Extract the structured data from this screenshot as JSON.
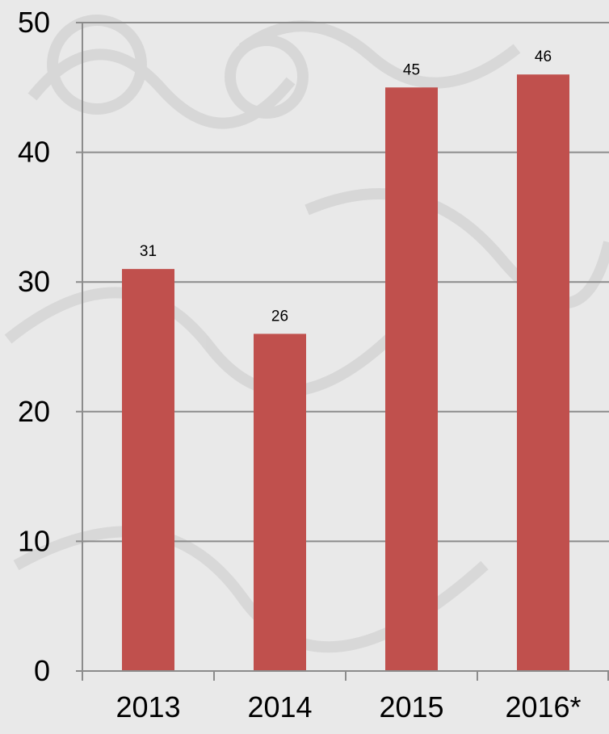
{
  "chart_data": {
    "type": "bar",
    "categories": [
      "2013",
      "2014",
      "2015",
      "2016*"
    ],
    "values": [
      31,
      26,
      45,
      46
    ],
    "data_labels": [
      "31",
      "26",
      "45",
      "46"
    ],
    "ylim": [
      0,
      50
    ],
    "y_ticks": [
      "0",
      "10",
      "20",
      "30",
      "40",
      "50"
    ],
    "grid": true,
    "bar_color": "#c0504d",
    "grid_color": "#8c8c8c",
    "background_color": "#e9e9e9"
  }
}
